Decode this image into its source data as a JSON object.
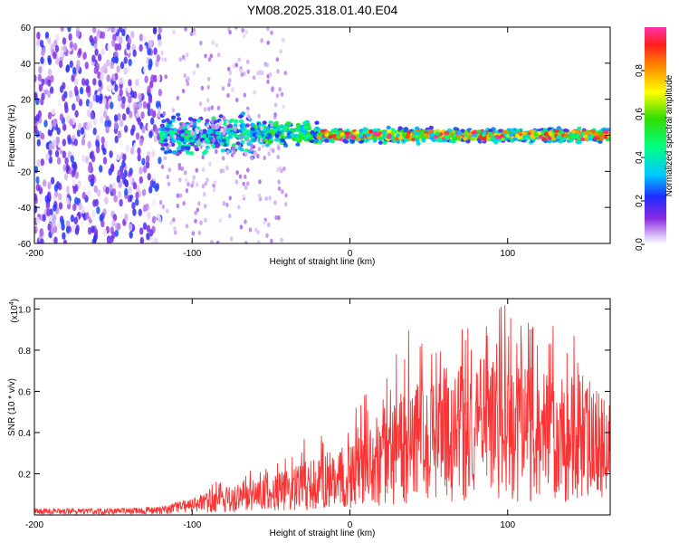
{
  "title": "YM08.2025.318.01.40.E04",
  "chart_data": [
    {
      "type": "heatmap",
      "name": "spectrogram",
      "title": "YM08.2025.318.01.40.E04",
      "xlabel": "Height of straight line (km)",
      "ylabel": "Frequency (Hz)",
      "xlim": [
        -200,
        165
      ],
      "ylim": [
        -60,
        60
      ],
      "xticks": [
        -200,
        -100,
        0,
        100
      ],
      "yticks": [
        60,
        40,
        20,
        0,
        -20,
        -40,
        -60
      ],
      "colorbar": {
        "label": "Normalized spectral amplitude",
        "range": [
          0.0,
          1.0
        ],
        "ticks": [
          "0.0",
          "0.2",
          "0.4",
          "0.6",
          "0.8"
        ]
      },
      "description_regions": [
        {
          "x_range": [
            -200,
            -120
          ],
          "frequency_spread": [
            -60,
            60
          ],
          "amplitude_range": [
            0.0,
            0.25
          ]
        },
        {
          "x_range": [
            -120,
            -60
          ],
          "frequency_spread": [
            -12,
            12
          ],
          "amplitude_range": [
            0.1,
            0.5
          ]
        },
        {
          "x_range": [
            -60,
            -20
          ],
          "frequency_spread": [
            -6,
            8
          ],
          "amplitude_range": [
            0.2,
            0.6
          ]
        },
        {
          "x_range": [
            -20,
            165
          ],
          "frequency_spread": [
            -4,
            4
          ],
          "amplitude_range": [
            0.3,
            1.0
          ]
        }
      ]
    },
    {
      "type": "line",
      "name": "snr",
      "xlabel": "Height of straight line (km)",
      "ylabel": "SNR (10 * v/v)",
      "y_scale_label": "(x10",
      "y_scale_exp": "4",
      "y_scale_close": ")",
      "xlim": [
        -200,
        165
      ],
      "ylim": [
        0,
        1.05
      ],
      "xticks": [
        -200,
        -100,
        0,
        100
      ],
      "yticks": [
        "0.2",
        "0.4",
        "0.6",
        "0.8",
        "1.0"
      ],
      "color": "#ff3333",
      "envelope": {
        "x": [
          -200,
          -150,
          -120,
          -100,
          -80,
          -60,
          -40,
          -20,
          0,
          20,
          40,
          60,
          80,
          100,
          120,
          140,
          165
        ],
        "mean": [
          0.02,
          0.02,
          0.025,
          0.05,
          0.08,
          0.1,
          0.13,
          0.17,
          0.2,
          0.3,
          0.38,
          0.42,
          0.45,
          0.43,
          0.42,
          0.4,
          0.33
        ],
        "peak": [
          0.03,
          0.03,
          0.04,
          0.08,
          0.2,
          0.22,
          0.28,
          0.45,
          0.48,
          0.7,
          0.96,
          0.97,
          0.95,
          1.04,
          0.98,
          0.9,
          0.6
        ]
      }
    }
  ]
}
